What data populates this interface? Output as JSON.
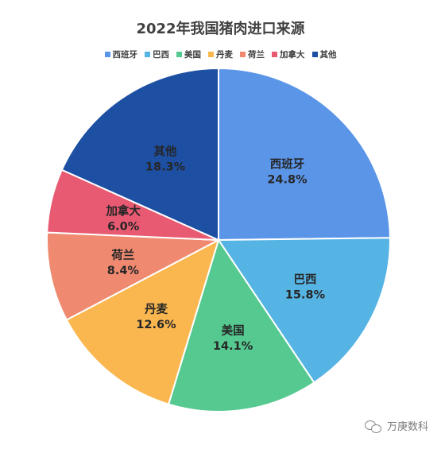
{
  "chart_data": {
    "type": "pie",
    "title": "2022年我国猪肉进口来源",
    "legend_position": "top",
    "categories": [
      "西班牙",
      "巴西",
      "美国",
      "丹麦",
      "荷兰",
      "加拿大",
      "其他"
    ],
    "values": [
      24.8,
      15.8,
      14.1,
      12.6,
      8.4,
      6.0,
      18.3
    ],
    "value_labels": [
      "24.8%",
      "15.8%",
      "14.1%",
      "12.6%",
      "8.4%",
      "6.0%",
      "18.3%"
    ],
    "colors": [
      "#5b95e8",
      "#56b4e4",
      "#55c990",
      "#fbb74f",
      "#ef8a70",
      "#e85a72",
      "#1d4fa3"
    ]
  },
  "watermark": "万庚数科"
}
